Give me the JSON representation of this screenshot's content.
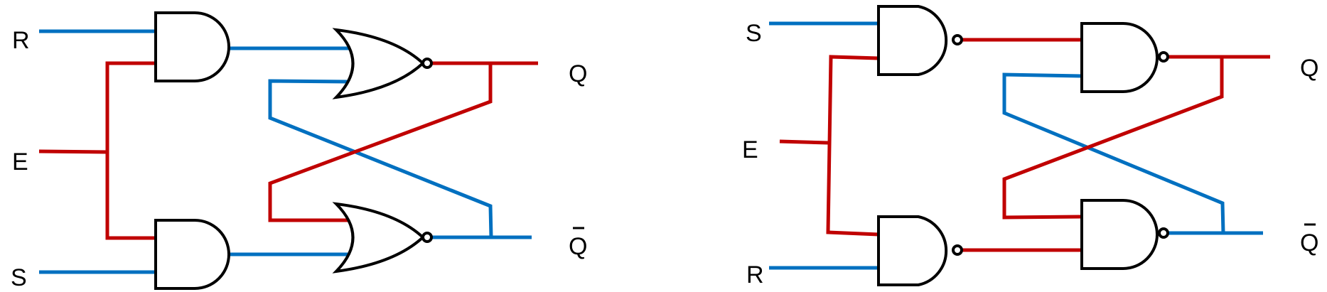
{
  "colors": {
    "logic_high": "#c00000",
    "logic_low": "#0070c0",
    "gate_outline": "#000000"
  },
  "left_circuit": {
    "labels": {
      "r": "R",
      "e": "E",
      "s": "S",
      "q": "Q",
      "q_bar": "Q"
    },
    "gates": [
      "and-gate",
      "and-gate",
      "nor-gate",
      "nor-gate"
    ]
  },
  "right_circuit": {
    "labels": {
      "s": "S",
      "e": "E",
      "r": "R",
      "q": "Q",
      "q_bar": "Q"
    },
    "gates": [
      "nand-gate",
      "nand-gate",
      "nand-gate",
      "nand-gate"
    ]
  }
}
